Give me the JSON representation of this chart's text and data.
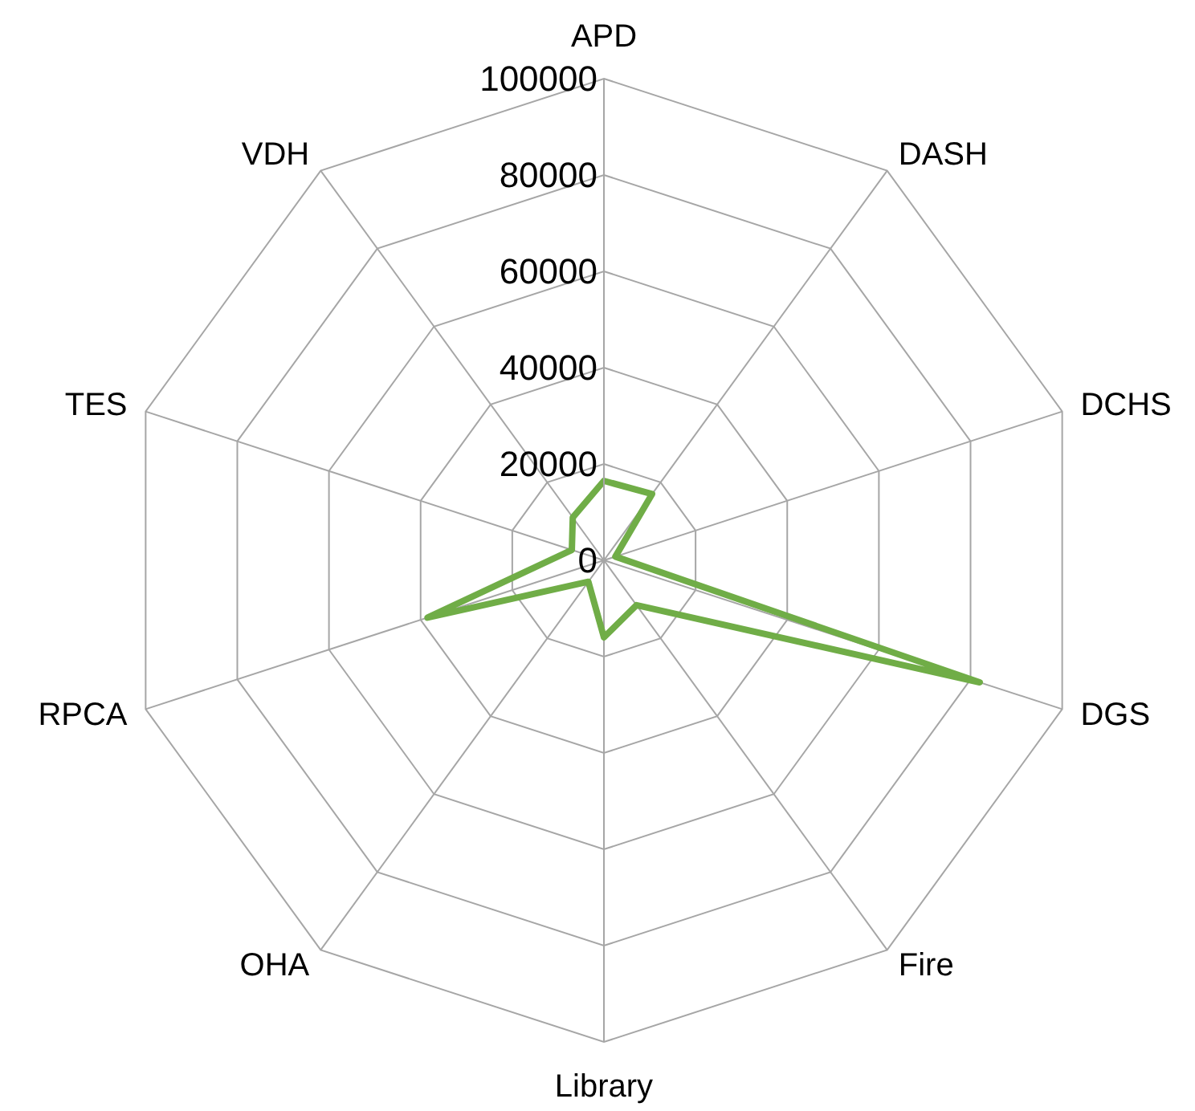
{
  "chart_data": {
    "type": "radar",
    "categories": [
      "APD",
      "DASH",
      "DCHS",
      "DGS",
      "Fire",
      "Library",
      "OHA",
      "RPCA",
      "TES",
      "VDH"
    ],
    "series": [
      {
        "color": "#70ad47",
        "values": [
          16500,
          17000,
          2500,
          82000,
          11500,
          16000,
          5500,
          38500,
          7000,
          11000
        ]
      }
    ],
    "ylim": [
      0,
      100000
    ],
    "yticks": [
      0,
      20000,
      40000,
      60000,
      80000,
      100000
    ],
    "grid": true
  }
}
